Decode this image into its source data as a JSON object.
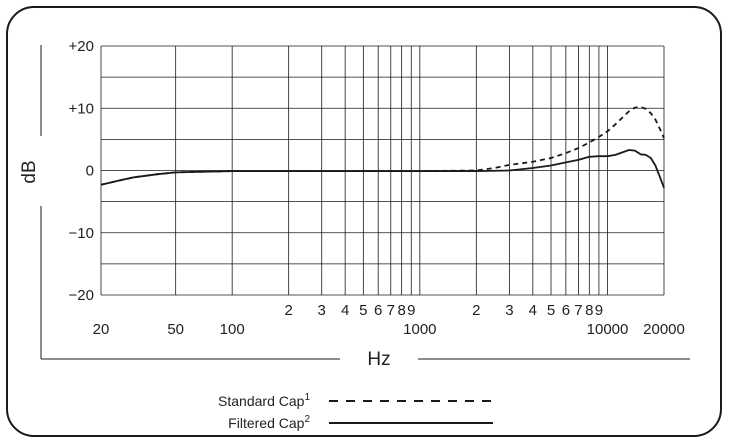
{
  "chart_data": {
    "type": "line",
    "xscale": "log",
    "xlim": [
      20,
      20000
    ],
    "ylim": [
      -20,
      20
    ],
    "xlabel": "Hz",
    "ylabel": "dB",
    "grid": true,
    "y_ticks": [
      {
        "value": 20,
        "label": "+20"
      },
      {
        "value": 10,
        "label": "+10"
      },
      {
        "value": 0,
        "label": "0"
      },
      {
        "value": -10,
        "label": "−10"
      },
      {
        "value": -20,
        "label": "−20"
      }
    ],
    "x_gridlines": [
      20,
      50,
      100,
      200,
      300,
      400,
      500,
      600,
      700,
      800,
      900,
      1000,
      2000,
      3000,
      4000,
      5000,
      6000,
      7000,
      8000,
      9000,
      10000,
      20000
    ],
    "x_tick_labels_main": [
      {
        "value": 20,
        "label": "20"
      },
      {
        "value": 50,
        "label": "50"
      },
      {
        "value": 100,
        "label": "100"
      },
      {
        "value": 1000,
        "label": "1000"
      },
      {
        "value": 10000,
        "label": "10000"
      },
      {
        "value": 20000,
        "label": "20000"
      }
    ],
    "x_tick_labels_minor": [
      {
        "value": 200,
        "label": "2"
      },
      {
        "value": 300,
        "label": "3"
      },
      {
        "value": 400,
        "label": "4"
      },
      {
        "value": 500,
        "label": "5"
      },
      {
        "value": 600,
        "label": "6"
      },
      {
        "value": 700,
        "label": "7"
      },
      {
        "value": 800,
        "label": "8"
      },
      {
        "value": 900,
        "label": "9"
      },
      {
        "value": 2000,
        "label": "2"
      },
      {
        "value": 3000,
        "label": "3"
      },
      {
        "value": 4000,
        "label": "4"
      },
      {
        "value": 5000,
        "label": "5"
      },
      {
        "value": 6000,
        "label": "6"
      },
      {
        "value": 7000,
        "label": "7"
      },
      {
        "value": 8000,
        "label": "8"
      },
      {
        "value": 9000,
        "label": "9"
      }
    ],
    "series": [
      {
        "name": "Standard Cap",
        "superscript": "1",
        "style": "dashed",
        "color": "#1a1a1a",
        "points": [
          [
            20,
            -2.3
          ],
          [
            25,
            -1.6
          ],
          [
            30,
            -1.1
          ],
          [
            40,
            -0.6
          ],
          [
            50,
            -0.3
          ],
          [
            70,
            -0.2
          ],
          [
            100,
            -0.1
          ],
          [
            200,
            -0.1
          ],
          [
            500,
            -0.1
          ],
          [
            1000,
            -0.1
          ],
          [
            2000,
            0
          ],
          [
            2500,
            0.4
          ],
          [
            3000,
            0.9
          ],
          [
            4000,
            1.4
          ],
          [
            5000,
            2.0
          ],
          [
            6000,
            2.8
          ],
          [
            7000,
            3.6
          ],
          [
            8000,
            4.5
          ],
          [
            9000,
            5.4
          ],
          [
            10000,
            6.3
          ],
          [
            11000,
            7.4
          ],
          [
            12000,
            8.5
          ],
          [
            13000,
            9.5
          ],
          [
            14000,
            10.1
          ],
          [
            15000,
            10.2
          ],
          [
            16000,
            9.9
          ],
          [
            17000,
            9.2
          ],
          [
            18000,
            8.2
          ],
          [
            19000,
            6.7
          ],
          [
            20000,
            5.2
          ]
        ]
      },
      {
        "name": "Filtered Cap",
        "superscript": "2",
        "style": "solid",
        "color": "#1a1a1a",
        "points": [
          [
            20,
            -2.3
          ],
          [
            25,
            -1.6
          ],
          [
            30,
            -1.1
          ],
          [
            40,
            -0.6
          ],
          [
            50,
            -0.3
          ],
          [
            70,
            -0.2
          ],
          [
            100,
            -0.1
          ],
          [
            200,
            -0.1
          ],
          [
            500,
            -0.1
          ],
          [
            1000,
            -0.1
          ],
          [
            2000,
            -0.1
          ],
          [
            3000,
            0
          ],
          [
            4000,
            0.4
          ],
          [
            5000,
            0.8
          ],
          [
            6000,
            1.3
          ],
          [
            7000,
            1.7
          ],
          [
            8000,
            2.2
          ],
          [
            9000,
            2.3
          ],
          [
            10000,
            2.3
          ],
          [
            11000,
            2.5
          ],
          [
            12000,
            2.9
          ],
          [
            13000,
            3.3
          ],
          [
            14000,
            3.2
          ],
          [
            15000,
            2.6
          ],
          [
            16000,
            2.5
          ],
          [
            17000,
            2.0
          ],
          [
            18000,
            0.8
          ],
          [
            19000,
            -1.0
          ],
          [
            20000,
            -2.8
          ]
        ]
      }
    ],
    "legend": {
      "placement": "bottom-center",
      "entries": [
        {
          "label": "Standard Cap",
          "sup": "1",
          "style": "dashed"
        },
        {
          "label": "Filtered Cap",
          "sup": "2",
          "style": "solid"
        }
      ]
    }
  }
}
